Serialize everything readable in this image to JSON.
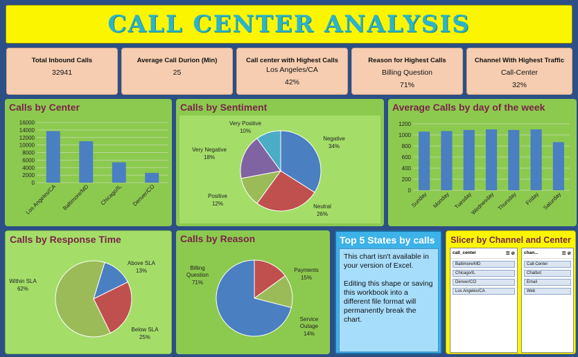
{
  "title": "CALL CENTER ANALYSIS",
  "kpis": [
    {
      "label": "Total Inbound Calls",
      "line1": "",
      "line2": "32941"
    },
    {
      "label": "Average Call Durion (Min)",
      "line1": "",
      "line2": "25"
    },
    {
      "label": "Call center with Highest Calls",
      "line1": "Los Angeles/CA",
      "line2": "42%"
    },
    {
      "label": "Reason for Highest Calls",
      "line1": "Billing Question",
      "line2": "71%"
    },
    {
      "label": "Channel With Highest Traffic",
      "line1": "Call-Center",
      "line2": "32%"
    }
  ],
  "panels": {
    "center": "Calls by Center",
    "sentiment": "Calls by Sentiment",
    "weekday": "Average Calls by day of the week",
    "response": "Calls by Response Time",
    "reason": "Calls by Reason",
    "top5": "Top 5 States by calls",
    "slicer": "Slicer by Channel and Center"
  },
  "top5_message": [
    "This chart isn't available in your version of Excel.",
    "Editing this shape or saving this workbook into a different file format will permanently break the chart."
  ],
  "slicers": {
    "center": {
      "header": "call_center",
      "items": [
        "Baltimore/MD",
        "Chicago/IL",
        "Denver/CO",
        "Los Angeles/CA"
      ]
    },
    "channel": {
      "header": "chan...",
      "items": [
        "Call-Center",
        "Chatbot",
        "Email",
        "Web"
      ]
    }
  },
  "colors": {
    "bar": "#4a7fc1",
    "kpi_bg": "#f6cdb0",
    "title_bg": "#fbf600",
    "title_text": "#2bb5c8"
  },
  "chart_data": [
    {
      "type": "bar",
      "title": "Calls by Center",
      "categories": [
        "Los Angeles/CA",
        "Baltimore/MD",
        "Chicago/IL",
        "Denver/CO"
      ],
      "values": [
        13700,
        11000,
        5400,
        2600
      ],
      "ylim": [
        0,
        16000
      ],
      "yticks": [
        0,
        2000,
        4000,
        6000,
        8000,
        10000,
        12000,
        14000,
        16000
      ],
      "grid": true
    },
    {
      "type": "pie",
      "title": "Calls by Sentiment",
      "slices": [
        {
          "name": "Negative",
          "pct": 34,
          "label": "34%",
          "color": "#4a7fc1"
        },
        {
          "name": "Neutral",
          "pct": 26,
          "label": "26%",
          "color": "#c0504d"
        },
        {
          "name": "Positive",
          "pct": 12,
          "label": "12%",
          "color": "#9bbb59"
        },
        {
          "name": "Very Negative",
          "pct": 18,
          "label": "18%",
          "color": "#8064a2"
        },
        {
          "name": "Very Positive",
          "pct": 10,
          "label": "10%",
          "color": "#4bacc6"
        }
      ]
    },
    {
      "type": "bar",
      "title": "Average Calls by day of the week",
      "categories": [
        "Sunday",
        "Monday",
        "Tuesday",
        "Wednesday",
        "Thursday",
        "Friday",
        "Saturday"
      ],
      "values": [
        1060,
        1070,
        1090,
        1100,
        1090,
        1100,
        870
      ],
      "ylim": [
        0,
        1200
      ],
      "yticks": [
        0,
        200,
        400,
        600,
        800,
        1000,
        1200
      ],
      "grid": true
    },
    {
      "type": "pie",
      "title": "Calls by Response Time",
      "slices": [
        {
          "name": "Above SLA",
          "pct": 13,
          "label": "13%",
          "color": "#4a7fc1"
        },
        {
          "name": "Below SLA",
          "pct": 25,
          "label": "25%",
          "color": "#c0504d"
        },
        {
          "name": "Within SLA",
          "pct": 62,
          "label": "62%",
          "color": "#9bbb59"
        }
      ]
    },
    {
      "type": "pie",
      "title": "Calls by Reason",
      "slices": [
        {
          "name": "Payments",
          "pct": 15,
          "label": "15%",
          "color": "#c0504d"
        },
        {
          "name": "Service Outage",
          "pct": 14,
          "label": "14%",
          "color": "#9bbb59"
        },
        {
          "name": "Billing Question",
          "pct": 71,
          "label": "71%",
          "color": "#4a7fc1"
        }
      ]
    }
  ]
}
